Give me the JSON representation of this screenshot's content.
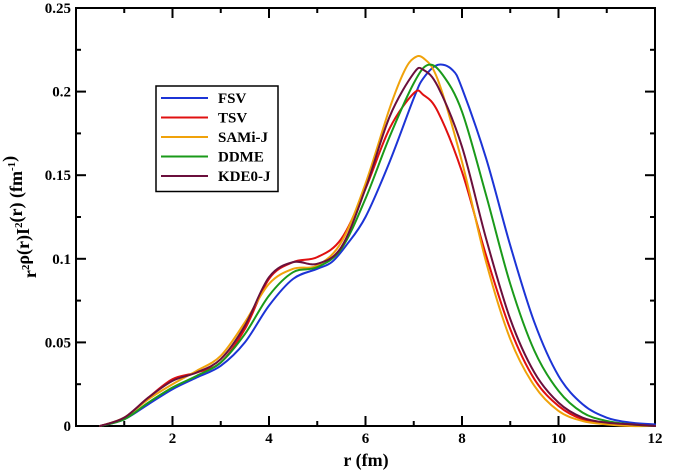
{
  "chart_data": {
    "type": "line",
    "title": "",
    "xlabel": "r (fm)",
    "ylabel": {
      "parts": [
        {
          "text": "r",
          "sup": false
        },
        {
          "text": "2",
          "sup": true
        },
        {
          "text": "ρ(r)I",
          "sup": false
        },
        {
          "text": "2",
          "sup": true
        },
        {
          "text": "(r) (fm",
          "sup": false
        },
        {
          "text": "-1",
          "sup": true
        },
        {
          "text": ")",
          "sup": false
        }
      ]
    },
    "xlim": [
      0,
      12
    ],
    "ylim": [
      0,
      0.25
    ],
    "xticks": [
      "2",
      "4",
      "6",
      "8",
      "10",
      "12"
    ],
    "yticks": [
      "0",
      "0.05",
      "0.1",
      "0.15",
      "0.2",
      "0.25"
    ],
    "grid": false,
    "legend_position": "upper-left",
    "series": [
      {
        "name": "FSV",
        "color": "#1c34d6",
        "x": [
          0.5,
          1.0,
          1.5,
          2.0,
          2.5,
          3.0,
          3.5,
          4.0,
          4.5,
          5.0,
          5.3,
          5.6,
          6.0,
          6.5,
          7.0,
          7.2,
          7.5,
          7.8,
          8.0,
          8.5,
          9.0,
          9.5,
          10.0,
          10.5,
          11.0,
          11.5,
          12.0
        ],
        "y": [
          0.0,
          0.004,
          0.013,
          0.022,
          0.029,
          0.036,
          0.05,
          0.072,
          0.088,
          0.094,
          0.098,
          0.108,
          0.125,
          0.158,
          0.196,
          0.208,
          0.216,
          0.213,
          0.202,
          0.16,
          0.108,
          0.062,
          0.03,
          0.013,
          0.005,
          0.002,
          0.001
        ]
      },
      {
        "name": "TSV",
        "color": "#e01010",
        "x": [
          0.5,
          1.0,
          1.5,
          2.0,
          2.5,
          3.0,
          3.5,
          4.0,
          4.5,
          5.0,
          5.5,
          6.0,
          6.5,
          7.0,
          7.2,
          7.5,
          8.0,
          8.5,
          9.0,
          9.5,
          10.0,
          10.5,
          11.0,
          11.5,
          12.0
        ],
        "y": [
          0.0,
          0.005,
          0.017,
          0.028,
          0.032,
          0.038,
          0.058,
          0.088,
          0.098,
          0.101,
          0.112,
          0.142,
          0.178,
          0.199,
          0.198,
          0.188,
          0.152,
          0.102,
          0.058,
          0.028,
          0.012,
          0.004,
          0.002,
          0.001,
          0.0
        ]
      },
      {
        "name": "SAMi-J",
        "color": "#f0a20a",
        "x": [
          0.5,
          1.0,
          1.5,
          2.0,
          2.5,
          3.0,
          3.5,
          4.0,
          4.5,
          5.0,
          5.5,
          6.0,
          6.5,
          6.8,
          7.0,
          7.2,
          7.5,
          8.0,
          8.5,
          9.0,
          9.5,
          10.0,
          10.5,
          11.0,
          11.5,
          12.0
        ],
        "y": [
          0.0,
          0.005,
          0.016,
          0.025,
          0.033,
          0.042,
          0.062,
          0.085,
          0.094,
          0.096,
          0.11,
          0.145,
          0.19,
          0.212,
          0.22,
          0.22,
          0.207,
          0.158,
          0.098,
          0.052,
          0.024,
          0.009,
          0.003,
          0.001,
          0.0,
          0.0
        ]
      },
      {
        "name": "DDME",
        "color": "#1a9a1a",
        "x": [
          0.5,
          1.0,
          1.5,
          2.0,
          2.5,
          3.0,
          3.5,
          4.0,
          4.5,
          5.0,
          5.5,
          6.0,
          6.5,
          7.0,
          7.3,
          7.6,
          8.0,
          8.5,
          9.0,
          9.5,
          10.0,
          10.5,
          11.0,
          11.5,
          12.0
        ],
        "y": [
          0.0,
          0.004,
          0.014,
          0.023,
          0.03,
          0.038,
          0.055,
          0.078,
          0.092,
          0.095,
          0.106,
          0.136,
          0.173,
          0.205,
          0.216,
          0.21,
          0.188,
          0.138,
          0.085,
          0.045,
          0.021,
          0.008,
          0.003,
          0.001,
          0.0
        ]
      },
      {
        "name": "KDE0-J",
        "color": "#6b0f3c",
        "x": [
          0.5,
          1.0,
          1.5,
          2.0,
          2.5,
          3.0,
          3.5,
          4.0,
          4.5,
          5.0,
          5.5,
          6.0,
          6.5,
          7.0,
          7.2,
          7.5,
          8.0,
          8.5,
          9.0,
          9.5,
          10.0,
          10.5,
          11.0,
          11.5,
          12.0
        ],
        "y": [
          0.0,
          0.005,
          0.017,
          0.027,
          0.032,
          0.04,
          0.06,
          0.089,
          0.098,
          0.097,
          0.107,
          0.142,
          0.185,
          0.211,
          0.213,
          0.203,
          0.167,
          0.112,
          0.064,
          0.032,
          0.014,
          0.005,
          0.002,
          0.001,
          0.0
        ]
      }
    ]
  }
}
